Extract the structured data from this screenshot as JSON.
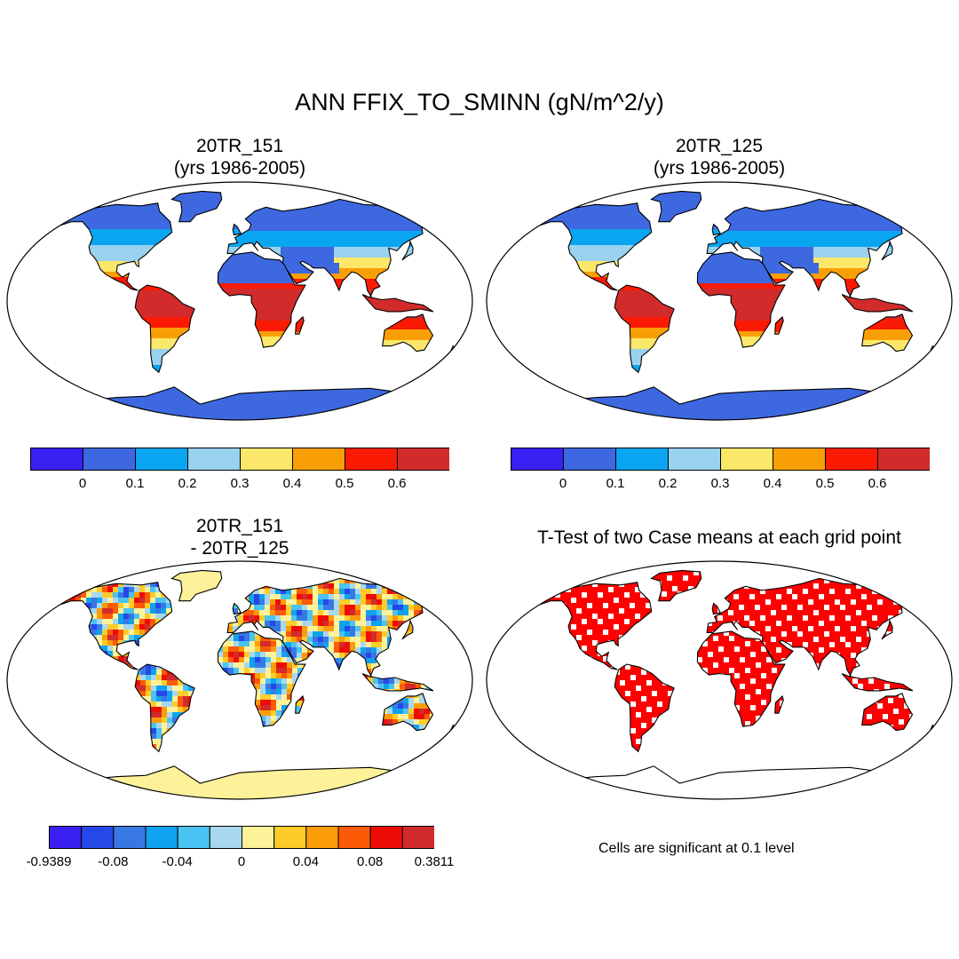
{
  "figure": {
    "title": "ANN FFIX_TO_SMINN (gN/m^2/y)"
  },
  "panels": [
    {
      "id": "top-left",
      "title_line1": "20TR_151",
      "title_line2": "(yrs 1986-2005)",
      "field": "20TR_151 annual mean"
    },
    {
      "id": "top-right",
      "title_line1": "20TR_125",
      "title_line2": "(yrs 1986-2005)",
      "field": "20TR_125 annual mean"
    },
    {
      "id": "bottom-left",
      "title_line1": "20TR_151",
      "title_line2": "- 20TR_125",
      "field": "difference"
    },
    {
      "id": "bottom-right",
      "title_line1": "T-Test of two Case means at each grid point",
      "field": "significance",
      "note": "Cells are significant at 0.1 level"
    }
  ],
  "colorbars": {
    "mean": {
      "colors": [
        "#3a1ff2",
        "#3d68e0",
        "#0aa5f0",
        "#99d2ef",
        "#fbe76a",
        "#f99f06",
        "#fb1a04",
        "#d22b2b"
      ],
      "labels": [
        "0",
        "0.1",
        "0.2",
        "0.3",
        "0.4",
        "0.5",
        "0.6"
      ]
    },
    "diff": {
      "colors": [
        "#3a1ff2",
        "#2648e8",
        "#3978e4",
        "#0fa2ee",
        "#49c4f2",
        "#a8d8ef",
        "#fdf29a",
        "#fdcc2a",
        "#fb9d08",
        "#fb5a06",
        "#ee0c06",
        "#d22b2b"
      ],
      "labels": [
        "-0.9389",
        "-0.08",
        "-0.04",
        "0",
        "0.04",
        "0.08",
        "0.3811"
      ]
    }
  },
  "legend_colors": {
    "significant": "#ff0000",
    "land_outline": "#000000"
  }
}
